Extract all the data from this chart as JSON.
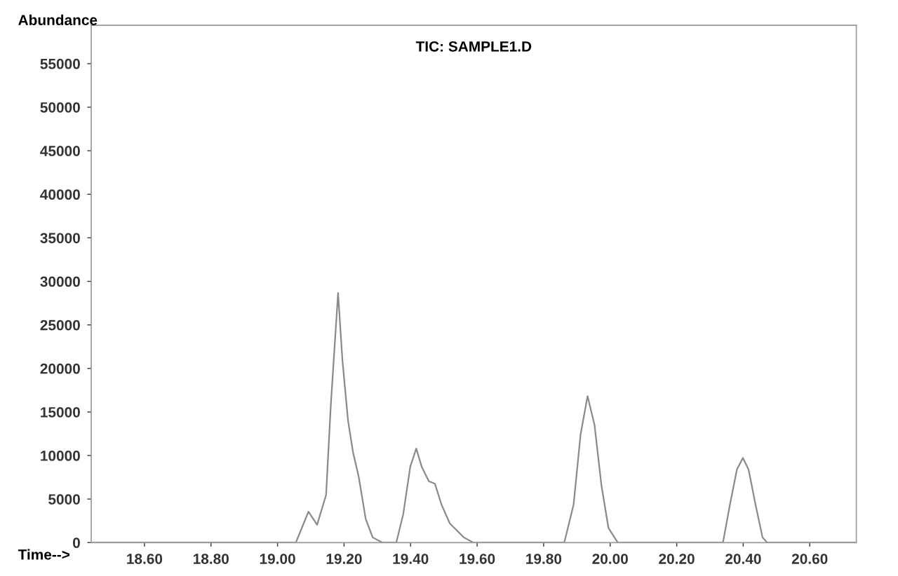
{
  "chart_data": {
    "type": "line",
    "title": "TIC: SAMPLE1.D",
    "xlabel": "Time-->",
    "ylabel": "Abundance",
    "series": [
      {
        "color": "#8a8a8a",
        "x": [
          18.44,
          19.055,
          19.093,
          19.119,
          19.146,
          19.16,
          19.182,
          19.195,
          19.212,
          19.227,
          19.244,
          19.265,
          19.286,
          19.315,
          19.357,
          19.378,
          19.399,
          19.417,
          19.434,
          19.455,
          19.473,
          19.493,
          19.518,
          19.56,
          19.588,
          19.862,
          19.89,
          19.911,
          19.932,
          19.953,
          19.974,
          19.995,
          20.023,
          20.339,
          20.36,
          20.381,
          20.399,
          20.416,
          20.437,
          20.458,
          20.472,
          20.74
        ],
        "values": [
          0,
          0,
          3550,
          2050,
          5480,
          15650,
          28660,
          21000,
          14000,
          10370,
          7580,
          2740,
          600,
          0,
          0,
          3270,
          8710,
          10800,
          8650,
          7050,
          6770,
          4350,
          2200,
          600,
          0,
          0,
          4350,
          12400,
          16820,
          13500,
          6500,
          1660,
          0,
          0,
          4350,
          8390,
          9730,
          8390,
          4350,
          600,
          0,
          0
        ]
      }
    ],
    "xlim": [
      18.44,
      20.74
    ],
    "ylim": [
      0,
      59400
    ],
    "xticks": [
      {
        "value": 18.6,
        "label": "18.60"
      },
      {
        "value": 18.8,
        "label": "18.80"
      },
      {
        "value": 19.0,
        "label": "19.00"
      },
      {
        "value": 19.2,
        "label": "19.20"
      },
      {
        "value": 19.4,
        "label": "19.40"
      },
      {
        "value": 19.6,
        "label": "19.60"
      },
      {
        "value": 19.8,
        "label": "19.80"
      },
      {
        "value": 20.0,
        "label": "20.00"
      },
      {
        "value": 20.2,
        "label": "20.20"
      },
      {
        "value": 20.4,
        "label": "20.40"
      },
      {
        "value": 20.6,
        "label": "20.60"
      }
    ],
    "yticks": [
      0,
      5000,
      10000,
      15000,
      20000,
      25000,
      30000,
      35000,
      40000,
      45000,
      50000,
      55000
    ],
    "grid": false,
    "legend": false,
    "marker": "none",
    "line_style": "solid"
  }
}
